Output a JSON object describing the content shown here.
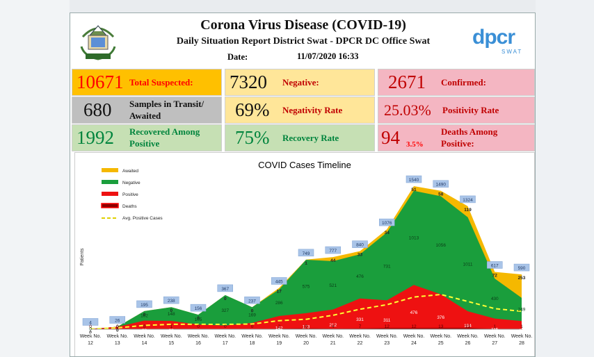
{
  "report": {
    "title": "Corona Virus Disease (COVID-19)",
    "subtitle": "Daily Situation Report District Swat - DPCR DC Office Swat",
    "date_label": "Date:",
    "date_value": "11/07/2020 16:33",
    "logo_right_text": "dpcr",
    "logo_right_sub": "SWAT"
  },
  "stats": {
    "total_suspected": {
      "value": "10671",
      "label": "Total Suspected:",
      "color": "#ff0000",
      "bg": "#ffc000"
    },
    "negative": {
      "value": "7320",
      "label": "Negative:",
      "color": "#c00000",
      "bg": "#ffe699"
    },
    "confirmed": {
      "value": "2671",
      "label": "Confirmed:",
      "color": "#c00000",
      "bg": "#f4b6c2"
    },
    "samples_transit": {
      "value": "680",
      "label1": "Samples in Transit/",
      "label2": "Awaited",
      "color": "#111111",
      "bg": "#bfbfbf"
    },
    "negativity_rate": {
      "value": "69%",
      "label": "Negativity Rate",
      "color": "#c00000",
      "bg": "#ffe699"
    },
    "positivity_rate": {
      "value": "25.03%",
      "label": "Positivity Rate",
      "color": "#c00000",
      "bg": "#f4b6c2"
    },
    "recovered": {
      "value": "1992",
      "label1": "Recovered Among",
      "label2": "Positive",
      "color": "#00843d",
      "bg": "#c6e0b4"
    },
    "recovery_rate": {
      "value": "75%",
      "label": "Recovery Rate",
      "color": "#00843d",
      "bg": "#c6e0b4"
    },
    "deaths": {
      "value": "94",
      "pct": "3.5%",
      "label1": "Deaths Among",
      "label2": "Positive:",
      "color": "#c00000",
      "bg": "#f4b6c2"
    }
  },
  "chart_data": {
    "type": "area",
    "title": "COVID Cases Timeline",
    "ylabel": "Patients",
    "categories": [
      "Week No. 12",
      "Week No. 13",
      "Week No. 14",
      "Week No. 15",
      "Week No. 16",
      "Week No. 17",
      "Week No. 18",
      "Week No. 19",
      "Week No. 20",
      "Week No. 21",
      "Week No. 22",
      "Week No. 23",
      "Week No. 24",
      "Week No. 25",
      "Week No. 26",
      "Week No. 27",
      "Week No. 28"
    ],
    "totals": [
      4,
      26,
      195,
      238,
      156,
      367,
      237,
      445,
      749,
      777,
      840,
      1076,
      1540,
      1490,
      1324,
      617,
      590
    ],
    "series": [
      {
        "name": "Awaited",
        "color": "#f5b800",
        "values": [
          0,
          0,
          0,
          0,
          0,
          0,
          0,
          17,
          1,
          44,
          33,
          34,
          51,
          58,
          119,
          72,
          253
        ]
      },
      {
        "name": "Negative",
        "color": "#1a9e3c",
        "values": [
          0,
          0,
          102,
          148,
          105,
          327,
          169,
          286,
          575,
          521,
          476,
          731,
          1013,
          1056,
          1011,
          430,
          249
        ]
      },
      {
        "name": "Positive",
        "color": "#ee1111",
        "values": [
          4,
          26,
          93,
          90,
          51,
          40,
          68,
          142,
          173,
          212,
          331,
          311,
          476,
          376,
          194,
          115,
          88
        ]
      },
      {
        "name": "Deaths",
        "color": "#8b0000",
        "values": [
          0,
          0,
          0,
          1,
          0,
          0,
          0,
          2,
          8,
          4,
          7,
          12,
          12,
          13,
          13,
          1,
          1
        ]
      },
      {
        "name": "Avg. Positive Cases",
        "color": "#ffff33",
        "values": [
          4,
          15,
          41,
          53,
          53,
          52,
          56,
          92,
          107,
          150,
          215,
          264,
          346,
          374,
          299,
          222,
          193
        ]
      }
    ],
    "ylim": [
      0,
      1600
    ],
    "legend": "top-left",
    "grid": false
  }
}
